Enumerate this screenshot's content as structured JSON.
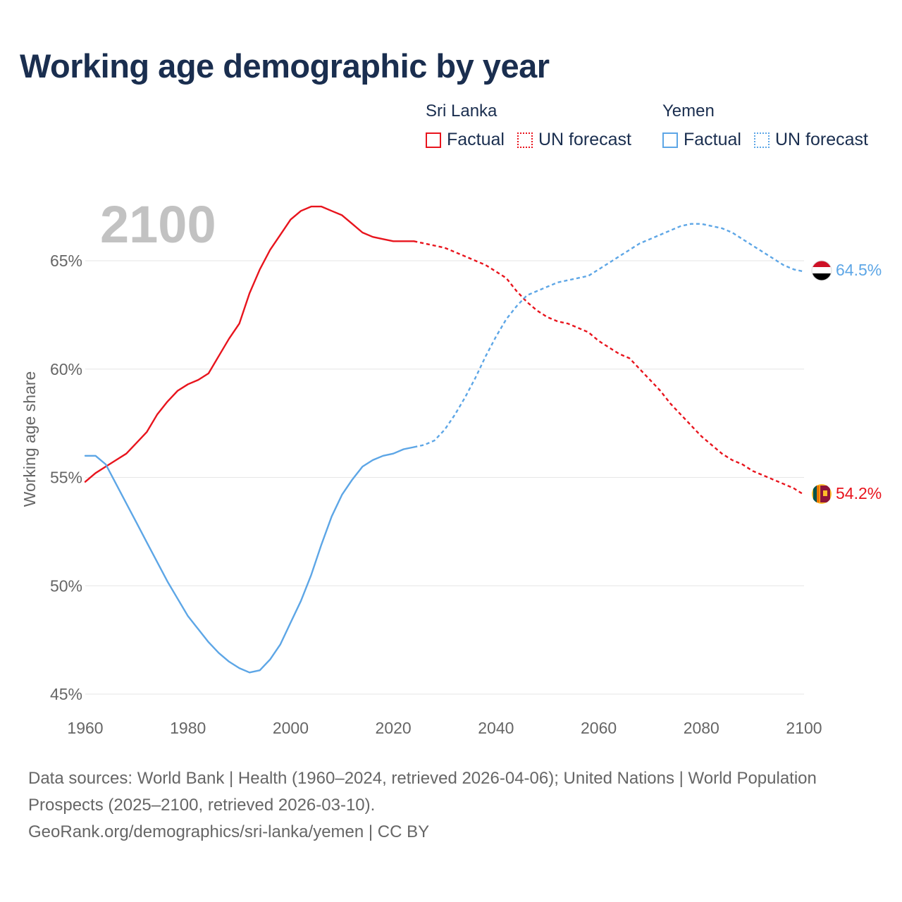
{
  "title": "Working age demographic by year",
  "legend": {
    "groups": [
      {
        "country": "Sri Lanka",
        "factual_label": "Factual",
        "forecast_label": "UN forecast",
        "color": "#e8141d"
      },
      {
        "country": "Yemen",
        "factual_label": "Factual",
        "forecast_label": "UN forecast",
        "color": "#5da6e6"
      }
    ]
  },
  "year_display": "2100",
  "footer": {
    "sources": "Data sources: World Bank | Health (1960–2024, retrieved 2026-04-06); United Nations | World Population Prospects (2025–2100, retrieved 2026-03-10).",
    "credit": "GeoRank.org/demographics/sri-lanka/yemen | CC BY"
  },
  "colors": {
    "sri_lanka": "#e8141d",
    "yemen": "#5da6e6",
    "title": "#1a2e4f",
    "grid": "#e6e6e6",
    "axis_text": "#666666"
  },
  "chart_data": {
    "type": "line",
    "title": "Working age demographic by year",
    "xlabel": "",
    "ylabel": "Working age share",
    "xlim": [
      1960,
      2100
    ],
    "ylim": [
      45,
      68
    ],
    "x_ticks": [
      1960,
      1980,
      2000,
      2020,
      2040,
      2060,
      2080,
      2100
    ],
    "x_tick_labels": [
      "1960",
      "1980",
      "2000",
      "2020",
      "2040",
      "2060",
      "2080",
      "2100"
    ],
    "y_ticks": [
      45,
      50,
      55,
      60,
      65
    ],
    "y_tick_labels": [
      "45%",
      "50%",
      "55%",
      "60%",
      "65%"
    ],
    "forecast_start": 2024,
    "series": [
      {
        "name": "Sri Lanka",
        "color": "#e8141d",
        "end_label": "54.2%",
        "flag_icon": "sri-lanka-flag-icon",
        "points": [
          [
            1960,
            54.8
          ],
          [
            1962,
            55.2
          ],
          [
            1964,
            55.5
          ],
          [
            1966,
            55.8
          ],
          [
            1968,
            56.1
          ],
          [
            1970,
            56.6
          ],
          [
            1972,
            57.1
          ],
          [
            1974,
            57.9
          ],
          [
            1976,
            58.5
          ],
          [
            1978,
            59.0
          ],
          [
            1980,
            59.3
          ],
          [
            1982,
            59.5
          ],
          [
            1984,
            59.8
          ],
          [
            1986,
            60.6
          ],
          [
            1988,
            61.4
          ],
          [
            1990,
            62.1
          ],
          [
            1992,
            63.5
          ],
          [
            1994,
            64.6
          ],
          [
            1996,
            65.5
          ],
          [
            1998,
            66.2
          ],
          [
            2000,
            66.9
          ],
          [
            2002,
            67.3
          ],
          [
            2004,
            67.5
          ],
          [
            2006,
            67.5
          ],
          [
            2008,
            67.3
          ],
          [
            2010,
            67.1
          ],
          [
            2012,
            66.7
          ],
          [
            2014,
            66.3
          ],
          [
            2016,
            66.1
          ],
          [
            2018,
            66.0
          ],
          [
            2020,
            65.9
          ],
          [
            2022,
            65.9
          ],
          [
            2024,
            65.9
          ],
          [
            2026,
            65.8
          ],
          [
            2028,
            65.7
          ],
          [
            2030,
            65.6
          ],
          [
            2032,
            65.4
          ],
          [
            2034,
            65.2
          ],
          [
            2036,
            65.0
          ],
          [
            2038,
            64.8
          ],
          [
            2040,
            64.5
          ],
          [
            2042,
            64.2
          ],
          [
            2044,
            63.6
          ],
          [
            2046,
            63.1
          ],
          [
            2048,
            62.7
          ],
          [
            2050,
            62.4
          ],
          [
            2052,
            62.2
          ],
          [
            2054,
            62.1
          ],
          [
            2056,
            61.9
          ],
          [
            2058,
            61.7
          ],
          [
            2060,
            61.3
          ],
          [
            2062,
            61.0
          ],
          [
            2064,
            60.7
          ],
          [
            2066,
            60.5
          ],
          [
            2068,
            60.0
          ],
          [
            2070,
            59.5
          ],
          [
            2072,
            59.0
          ],
          [
            2074,
            58.4
          ],
          [
            2076,
            57.9
          ],
          [
            2078,
            57.4
          ],
          [
            2080,
            56.9
          ],
          [
            2082,
            56.5
          ],
          [
            2084,
            56.1
          ],
          [
            2086,
            55.8
          ],
          [
            2088,
            55.6
          ],
          [
            2090,
            55.3
          ],
          [
            2092,
            55.1
          ],
          [
            2094,
            54.9
          ],
          [
            2096,
            54.7
          ],
          [
            2098,
            54.5
          ],
          [
            2100,
            54.2
          ]
        ]
      },
      {
        "name": "Yemen",
        "color": "#5da6e6",
        "end_label": "64.5%",
        "flag_icon": "yemen-flag-icon",
        "points": [
          [
            1960,
            56.0
          ],
          [
            1962,
            56.0
          ],
          [
            1964,
            55.6
          ],
          [
            1966,
            54.7
          ],
          [
            1968,
            53.8
          ],
          [
            1970,
            52.9
          ],
          [
            1972,
            52.0
          ],
          [
            1974,
            51.1
          ],
          [
            1976,
            50.2
          ],
          [
            1978,
            49.4
          ],
          [
            1980,
            48.6
          ],
          [
            1982,
            48.0
          ],
          [
            1984,
            47.4
          ],
          [
            1986,
            46.9
          ],
          [
            1988,
            46.5
          ],
          [
            1990,
            46.2
          ],
          [
            1992,
            46.0
          ],
          [
            1994,
            46.1
          ],
          [
            1996,
            46.6
          ],
          [
            1998,
            47.3
          ],
          [
            2000,
            48.3
          ],
          [
            2002,
            49.3
          ],
          [
            2004,
            50.5
          ],
          [
            2006,
            51.9
          ],
          [
            2008,
            53.2
          ],
          [
            2010,
            54.2
          ],
          [
            2012,
            54.9
          ],
          [
            2014,
            55.5
          ],
          [
            2016,
            55.8
          ],
          [
            2018,
            56.0
          ],
          [
            2020,
            56.1
          ],
          [
            2022,
            56.3
          ],
          [
            2024,
            56.4
          ],
          [
            2026,
            56.5
          ],
          [
            2028,
            56.7
          ],
          [
            2030,
            57.2
          ],
          [
            2032,
            57.9
          ],
          [
            2034,
            58.7
          ],
          [
            2036,
            59.6
          ],
          [
            2038,
            60.6
          ],
          [
            2040,
            61.5
          ],
          [
            2042,
            62.3
          ],
          [
            2044,
            62.9
          ],
          [
            2046,
            63.4
          ],
          [
            2048,
            63.6
          ],
          [
            2050,
            63.8
          ],
          [
            2052,
            64.0
          ],
          [
            2054,
            64.1
          ],
          [
            2056,
            64.2
          ],
          [
            2058,
            64.3
          ],
          [
            2060,
            64.6
          ],
          [
            2062,
            64.9
          ],
          [
            2064,
            65.2
          ],
          [
            2066,
            65.5
          ],
          [
            2068,
            65.8
          ],
          [
            2070,
            66.0
          ],
          [
            2072,
            66.2
          ],
          [
            2074,
            66.4
          ],
          [
            2076,
            66.6
          ],
          [
            2078,
            66.7
          ],
          [
            2080,
            66.7
          ],
          [
            2082,
            66.6
          ],
          [
            2084,
            66.5
          ],
          [
            2086,
            66.3
          ],
          [
            2088,
            66.0
          ],
          [
            2090,
            65.7
          ],
          [
            2092,
            65.4
          ],
          [
            2094,
            65.1
          ],
          [
            2096,
            64.8
          ],
          [
            2098,
            64.6
          ],
          [
            2100,
            64.5
          ]
        ]
      }
    ]
  }
}
